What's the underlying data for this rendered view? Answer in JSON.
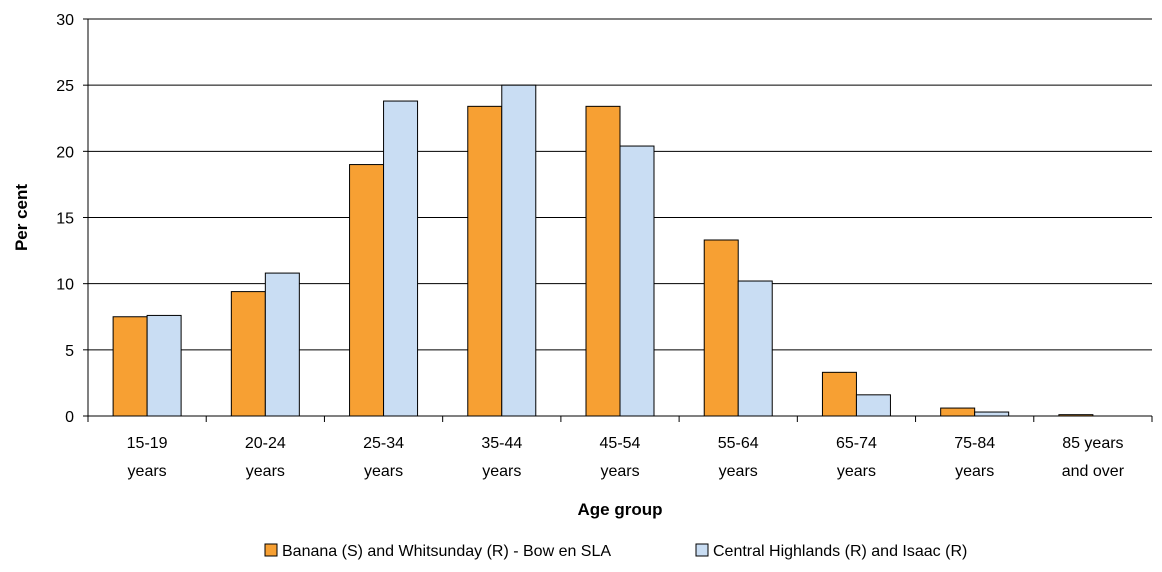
{
  "chart_data": {
    "type": "bar",
    "title": "",
    "xlabel": "Age group",
    "ylabel": "Per cent",
    "ylim": [
      0,
      30
    ],
    "yticks": [
      0,
      5,
      10,
      15,
      20,
      25,
      30
    ],
    "grid": true,
    "legend_position": "bottom",
    "categories": [
      [
        "15-19",
        "years"
      ],
      [
        "20-24",
        "years"
      ],
      [
        "25-34",
        "years"
      ],
      [
        "35-44",
        "years"
      ],
      [
        "45-54",
        "years"
      ],
      [
        "55-64",
        "years"
      ],
      [
        "65-74",
        "years"
      ],
      [
        "75-84",
        "years"
      ],
      [
        "85 years",
        "and over"
      ]
    ],
    "series": [
      {
        "name": "Banana (S) and Whitsunday (R) - Bow en SLA",
        "color": "#F7A033",
        "values": [
          7.5,
          9.4,
          19.0,
          23.4,
          23.4,
          13.3,
          3.3,
          0.6,
          0.1
        ]
      },
      {
        "name": "Central Highlands (R) and Isaac (R)",
        "color": "#C9DDF3",
        "values": [
          7.6,
          10.8,
          23.8,
          25.0,
          20.4,
          10.2,
          1.6,
          0.3,
          0.0
        ]
      }
    ]
  }
}
